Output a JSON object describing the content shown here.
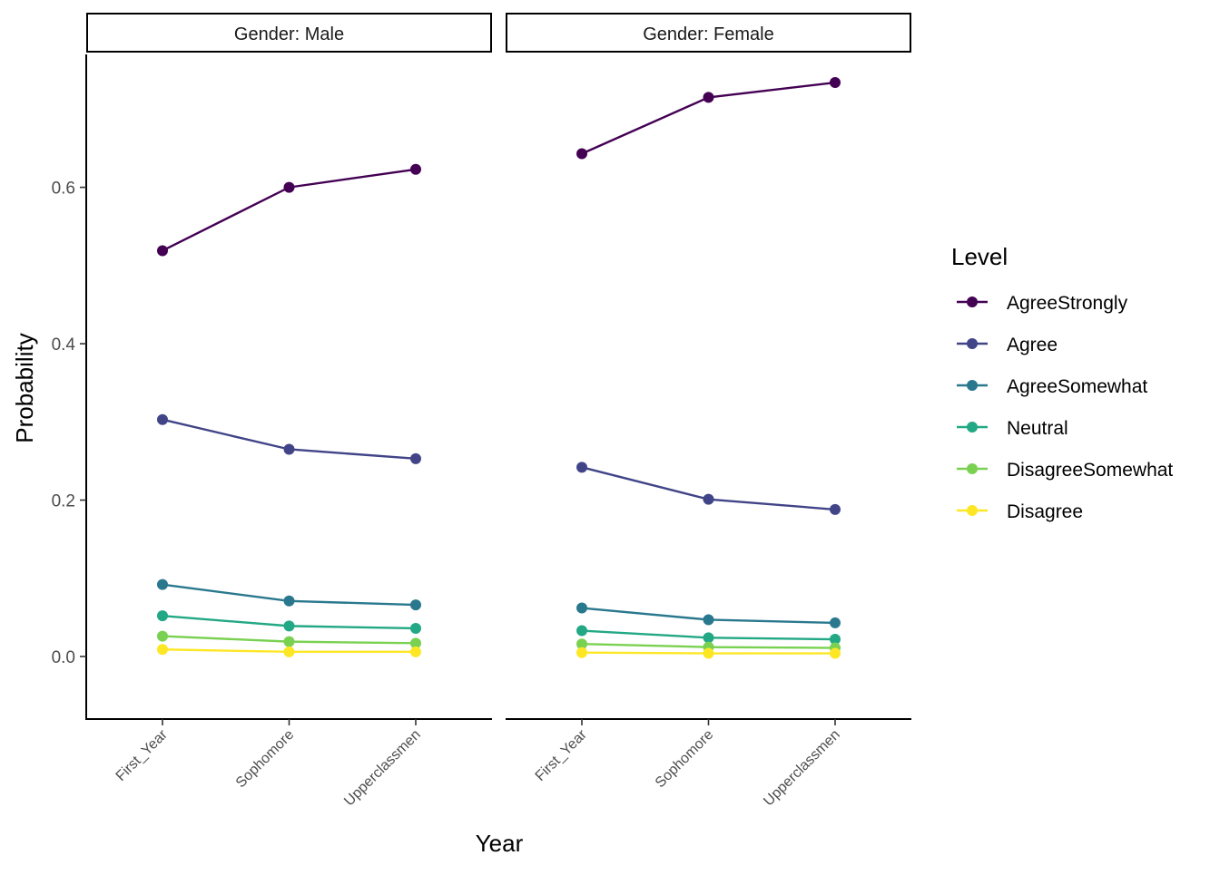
{
  "chart_data": {
    "type": "line",
    "xlabel": "Year",
    "ylabel": "Probability",
    "categories": [
      "First_Year",
      "Sophomore",
      "Upperclassmen"
    ],
    "ylim": [
      -0.08,
      0.77
    ],
    "yticks": [
      0.0,
      0.2,
      0.4,
      0.6
    ],
    "ytick_labels": [
      "0.0",
      "0.2",
      "0.4",
      "0.6"
    ],
    "grid": false,
    "legend": {
      "title": "Level",
      "placement": "right",
      "entries": [
        "AgreeStrongly",
        "Agree",
        "AgreeSomewhat",
        "Neutral",
        "DisagreeSomewhat",
        "Disagree"
      ]
    },
    "colors": {
      "AgreeStrongly": "#440154",
      "Agree": "#414487",
      "AgreeSomewhat": "#2A788E",
      "Neutral": "#22A884",
      "DisagreeSomewhat": "#7AD151",
      "Disagree": "#FDE725"
    },
    "panels": [
      {
        "strip": "Gender: Male",
        "series": [
          {
            "name": "AgreeStrongly",
            "values": [
              0.519,
              0.6,
              0.623
            ]
          },
          {
            "name": "Agree",
            "values": [
              0.303,
              0.265,
              0.253
            ]
          },
          {
            "name": "AgreeSomewhat",
            "values": [
              0.092,
              0.071,
              0.066
            ]
          },
          {
            "name": "Neutral",
            "values": [
              0.052,
              0.039,
              0.036
            ]
          },
          {
            "name": "DisagreeSomewhat",
            "values": [
              0.026,
              0.019,
              0.017
            ]
          },
          {
            "name": "Disagree",
            "values": [
              0.009,
              0.006,
              0.006
            ]
          }
        ]
      },
      {
        "strip": "Gender: Female",
        "series": [
          {
            "name": "AgreeStrongly",
            "values": [
              0.643,
              0.715,
              0.734
            ]
          },
          {
            "name": "Agree",
            "values": [
              0.242,
              0.201,
              0.188
            ]
          },
          {
            "name": "AgreeSomewhat",
            "values": [
              0.062,
              0.047,
              0.043
            ]
          },
          {
            "name": "Neutral",
            "values": [
              0.033,
              0.024,
              0.022
            ]
          },
          {
            "name": "DisagreeSomewhat",
            "values": [
              0.016,
              0.012,
              0.011
            ]
          },
          {
            "name": "Disagree",
            "values": [
              0.005,
              0.004,
              0.004
            ]
          }
        ]
      }
    ]
  }
}
